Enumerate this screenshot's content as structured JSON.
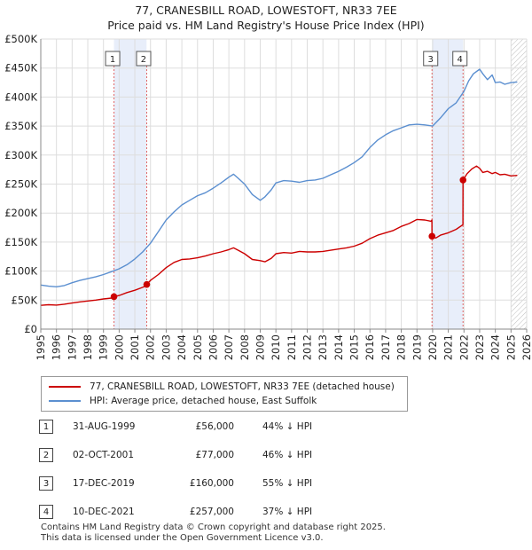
{
  "title_line1": "77, CRANESBILL ROAD, LOWESTOFT, NR33 7EE",
  "title_line2": "Price paid vs. HM Land Registry's House Price Index (HPI)",
  "chart_data": {
    "type": "line",
    "xlim": [
      1995,
      2026
    ],
    "ylim": [
      0,
      500000
    ],
    "yticks": [
      {
        "value": 0,
        "label": "£0"
      },
      {
        "value": 50000,
        "label": "£50K"
      },
      {
        "value": 100000,
        "label": "£100K"
      },
      {
        "value": 150000,
        "label": "£150K"
      },
      {
        "value": 200000,
        "label": "£200K"
      },
      {
        "value": 250000,
        "label": "£250K"
      },
      {
        "value": 300000,
        "label": "£300K"
      },
      {
        "value": 350000,
        "label": "£350K"
      },
      {
        "value": 400000,
        "label": "£400K"
      },
      {
        "value": 450000,
        "label": "£450K"
      },
      {
        "value": 500000,
        "label": "£500K"
      }
    ],
    "xticks": [
      "1995",
      "1996",
      "1997",
      "1998",
      "1999",
      "2000",
      "2001",
      "2002",
      "2003",
      "2004",
      "2005",
      "2006",
      "2007",
      "2008",
      "2009",
      "2010",
      "2011",
      "2012",
      "2013",
      "2014",
      "2015",
      "2016",
      "2017",
      "2018",
      "2019",
      "2020",
      "2021",
      "2022",
      "2023",
      "2024",
      "2025",
      "2026"
    ],
    "shaded_periods": [
      [
        1999.67,
        2001.75
      ],
      [
        2019.96,
        2021.94
      ]
    ],
    "hatched_from": 2025.0,
    "series": [
      {
        "name": "77, CRANESBILL ROAD, LOWESTOFT, NR33 7EE (detached house)",
        "color": "#cc0000",
        "x": [
          1995,
          1995.5,
          1996,
          1996.5,
          1997,
          1997.5,
          1998,
          1998.5,
          1999,
          1999.66,
          1999.67,
          2000,
          2000.5,
          2001,
          2001.5,
          2001.75,
          2001.76,
          2002,
          2002.5,
          2003,
          2003.5,
          2004,
          2004.5,
          2005,
          2005.5,
          2006,
          2006.5,
          2007,
          2007.3,
          2007.6,
          2008,
          2008.5,
          2009,
          2009.3,
          2009.7,
          2010,
          2010.5,
          2011,
          2011.5,
          2012,
          2012.5,
          2013,
          2013.5,
          2014,
          2014.5,
          2015,
          2015.5,
          2016,
          2016.5,
          2017,
          2017.5,
          2018,
          2018.5,
          2019,
          2019.5,
          2019.9,
          2019.95,
          2019.96,
          2020.2,
          2020.5,
          2021,
          2021.5,
          2021.93,
          2021.94,
          2022.2,
          2022.5,
          2022.8,
          2023,
          2023.2,
          2023.5,
          2023.8,
          2024,
          2024.3,
          2024.6,
          2025,
          2025.4
        ],
        "y": [
          41000,
          42000,
          41500,
          43000,
          45000,
          47000,
          48500,
          50000,
          52000,
          54000,
          56000,
          58000,
          63000,
          67000,
          72000,
          75000,
          77000,
          84000,
          94000,
          106000,
          115000,
          120000,
          121000,
          123000,
          126000,
          130000,
          133000,
          137000,
          140000,
          136000,
          130000,
          120000,
          118000,
          116000,
          122000,
          130000,
          132000,
          131000,
          134000,
          133000,
          133000,
          134000,
          136000,
          138000,
          140000,
          143000,
          148000,
          156000,
          162000,
          166000,
          170000,
          177000,
          182000,
          189000,
          188000,
          186000,
          188000,
          160000,
          157000,
          162000,
          166000,
          172000,
          180000,
          257000,
          268000,
          276000,
          281000,
          277000,
          270000,
          272000,
          268000,
          270000,
          266000,
          267000,
          264000,
          265000
        ]
      },
      {
        "name": "HPI: Average price, detached house, East Suffolk",
        "color": "#5b8fd0",
        "x": [
          1995,
          1995.5,
          1996,
          1996.5,
          1997,
          1997.5,
          1998,
          1998.5,
          1999,
          1999.5,
          2000,
          2000.5,
          2001,
          2001.5,
          2002,
          2002.5,
          2003,
          2003.5,
          2004,
          2004.5,
          2005,
          2005.5,
          2006,
          2006.5,
          2007,
          2007.3,
          2007.6,
          2008,
          2008.5,
          2009,
          2009.3,
          2009.7,
          2010,
          2010.5,
          2011,
          2011.5,
          2012,
          2012.5,
          2013,
          2013.5,
          2014,
          2014.5,
          2015,
          2015.5,
          2016,
          2016.5,
          2017,
          2017.5,
          2018,
          2018.5,
          2019,
          2019.5,
          2020,
          2020.5,
          2021,
          2021.5,
          2022,
          2022.3,
          2022.6,
          2023,
          2023.2,
          2023.5,
          2023.8,
          2024,
          2024.3,
          2024.6,
          2025,
          2025.4
        ],
        "y": [
          76000,
          74000,
          73000,
          75000,
          80000,
          84000,
          87000,
          90000,
          94000,
          99000,
          104000,
          111000,
          121000,
          133000,
          148000,
          168000,
          188000,
          202000,
          214000,
          222000,
          230000,
          235000,
          243000,
          252000,
          262000,
          267000,
          260000,
          250000,
          232000,
          222000,
          228000,
          240000,
          252000,
          256000,
          255000,
          253000,
          256000,
          257000,
          260000,
          266000,
          272000,
          279000,
          287000,
          297000,
          313000,
          326000,
          335000,
          342000,
          347000,
          352000,
          353000,
          352000,
          350000,
          364000,
          380000,
          390000,
          410000,
          428000,
          440000,
          448000,
          440000,
          430000,
          438000,
          425000,
          426000,
          422000,
          425000,
          426000
        ]
      }
    ],
    "sale_points": [
      {
        "label": "1",
        "x": 1999.67,
        "y": 56000
      },
      {
        "label": "2",
        "x": 2001.76,
        "y": 77000
      },
      {
        "label": "3",
        "x": 2019.96,
        "y": 160000
      },
      {
        "label": "4",
        "x": 2021.94,
        "y": 257000
      }
    ]
  },
  "legend": {
    "property_label": "77, CRANESBILL ROAD, LOWESTOFT, NR33 7EE (detached house)",
    "hpi_label": "HPI: Average price, detached house, East Suffolk",
    "property_color": "#cc0000",
    "hpi_color": "#5b8fd0"
  },
  "sales": [
    {
      "num": "1",
      "date": "31-AUG-1999",
      "price": "£56,000",
      "hpi": "44% ↓ HPI"
    },
    {
      "num": "2",
      "date": "02-OCT-2001",
      "price": "£77,000",
      "hpi": "46% ↓ HPI"
    },
    {
      "num": "3",
      "date": "17-DEC-2019",
      "price": "£160,000",
      "hpi": "55% ↓ HPI"
    },
    {
      "num": "4",
      "date": "10-DEC-2021",
      "price": "£257,000",
      "hpi": "37% ↓ HPI"
    }
  ],
  "footer_line1": "Contains HM Land Registry data © Crown copyright and database right 2025.",
  "footer_line2": "This data is licensed under the Open Government Licence v3.0."
}
